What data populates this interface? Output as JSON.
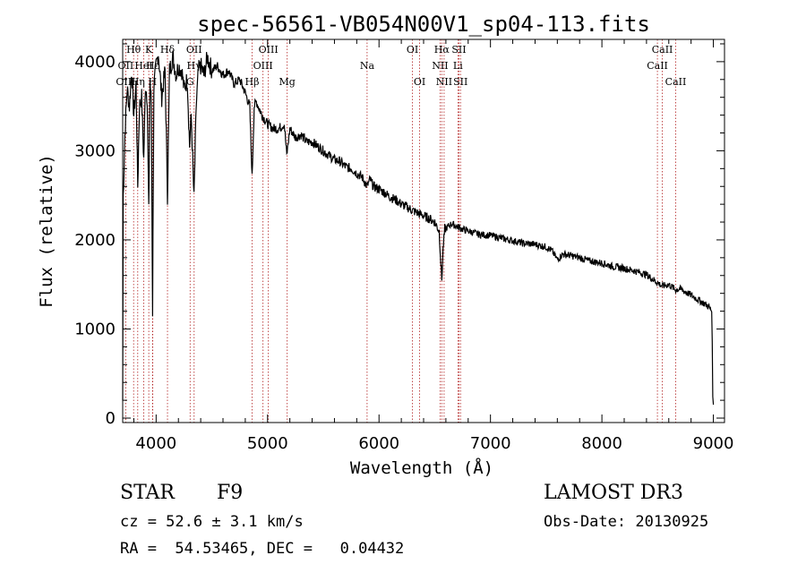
{
  "chart_data": {
    "type": "line",
    "title": "spec-56561-VB054N00V1_sp04-113.fits",
    "xlabel": "Wavelength (Å)",
    "ylabel": "Flux (relative)",
    "xlim": [
      3700,
      9100
    ],
    "ylim": [
      -50,
      4250
    ],
    "xticks": [
      4000,
      5000,
      6000,
      7000,
      8000,
      9000
    ],
    "yticks": [
      0,
      1000,
      2000,
      3000,
      4000
    ],
    "grid": false,
    "line_color": "#000000",
    "marker_color": "#b22222",
    "series": [
      {
        "name": "flux",
        "anchors": [
          [
            3700,
            200
          ],
          [
            3705,
            2500
          ],
          [
            3720,
            3200
          ],
          [
            3740,
            3700
          ],
          [
            3760,
            3500
          ],
          [
            3780,
            3900
          ],
          [
            3800,
            3400
          ],
          [
            3820,
            3750
          ],
          [
            3835,
            2600
          ],
          [
            3850,
            3500
          ],
          [
            3870,
            3600
          ],
          [
            3889,
            2900
          ],
          [
            3905,
            3750
          ],
          [
            3920,
            3600
          ],
          [
            3934,
            2300
          ],
          [
            3945,
            3800
          ],
          [
            3958,
            3500
          ],
          [
            3968,
            1200
          ],
          [
            3980,
            3700
          ],
          [
            4000,
            3950
          ],
          [
            4020,
            4100
          ],
          [
            4050,
            3600
          ],
          [
            4080,
            3900
          ],
          [
            4102,
            2500
          ],
          [
            4120,
            3900
          ],
          [
            4150,
            4050
          ],
          [
            4180,
            3850
          ],
          [
            4200,
            3950
          ],
          [
            4230,
            3900
          ],
          [
            4250,
            3700
          ],
          [
            4280,
            3800
          ],
          [
            4300,
            3050
          ],
          [
            4315,
            3400
          ],
          [
            4340,
            2450
          ],
          [
            4360,
            3500
          ],
          [
            4380,
            3900
          ],
          [
            4400,
            3950
          ],
          [
            4430,
            3850
          ],
          [
            4460,
            4050
          ],
          [
            4500,
            3900
          ],
          [
            4550,
            3950
          ],
          [
            4600,
            3850
          ],
          [
            4650,
            3900
          ],
          [
            4700,
            3750
          ],
          [
            4750,
            3800
          ],
          [
            4800,
            3650
          ],
          [
            4840,
            3500
          ],
          [
            4861,
            2700
          ],
          [
            4880,
            3500
          ],
          [
            4900,
            3550
          ],
          [
            4950,
            3400
          ],
          [
            5000,
            3300
          ],
          [
            5050,
            3250
          ],
          [
            5100,
            3250
          ],
          [
            5150,
            3300
          ],
          [
            5172,
            2950
          ],
          [
            5200,
            3250
          ],
          [
            5250,
            3150
          ],
          [
            5300,
            3180
          ],
          [
            5350,
            3100
          ],
          [
            5400,
            3100
          ],
          [
            5450,
            3050
          ],
          [
            5500,
            3000
          ],
          [
            5550,
            2950
          ],
          [
            5600,
            2900
          ],
          [
            5650,
            2880
          ],
          [
            5700,
            2820
          ],
          [
            5750,
            2800
          ],
          [
            5800,
            2750
          ],
          [
            5850,
            2700
          ],
          [
            5893,
            2600
          ],
          [
            5920,
            2680
          ],
          [
            5950,
            2600
          ],
          [
            6000,
            2570
          ],
          [
            6050,
            2530
          ],
          [
            6100,
            2480
          ],
          [
            6150,
            2450
          ],
          [
            6200,
            2400
          ],
          [
            6250,
            2370
          ],
          [
            6300,
            2330
          ],
          [
            6350,
            2300
          ],
          [
            6400,
            2270
          ],
          [
            6450,
            2240
          ],
          [
            6500,
            2200
          ],
          [
            6540,
            2100
          ],
          [
            6550,
            1850
          ],
          [
            6563,
            1550
          ],
          [
            6575,
            1900
          ],
          [
            6590,
            2120
          ],
          [
            6620,
            2150
          ],
          [
            6650,
            2180
          ],
          [
            6700,
            2150
          ],
          [
            6750,
            2120
          ],
          [
            6800,
            2100
          ],
          [
            6900,
            2060
          ],
          [
            7000,
            2050
          ],
          [
            7100,
            2020
          ],
          [
            7200,
            1990
          ],
          [
            7300,
            1960
          ],
          [
            7400,
            1950
          ],
          [
            7500,
            1920
          ],
          [
            7550,
            1880
          ],
          [
            7600,
            1780
          ],
          [
            7650,
            1840
          ],
          [
            7700,
            1830
          ],
          [
            7800,
            1800
          ],
          [
            7900,
            1760
          ],
          [
            8000,
            1740
          ],
          [
            8100,
            1700
          ],
          [
            8200,
            1680
          ],
          [
            8300,
            1650
          ],
          [
            8400,
            1610
          ],
          [
            8498,
            1520
          ],
          [
            8542,
            1480
          ],
          [
            8600,
            1500
          ],
          [
            8662,
            1440
          ],
          [
            8700,
            1450
          ],
          [
            8800,
            1380
          ],
          [
            8900,
            1300
          ],
          [
            8960,
            1250
          ],
          [
            8985,
            1200
          ],
          [
            8990,
            900
          ],
          [
            8995,
            200
          ],
          [
            9000,
            150
          ]
        ]
      }
    ],
    "annotations": [
      {
        "label": "Hθ",
        "wavelength": 3798,
        "row": 0
      },
      {
        "label": "OII",
        "wavelength": 3727,
        "row": 1
      },
      {
        "label": "OIII",
        "wavelength": 3727,
        "row": 2
      },
      {
        "label": "Hη",
        "wavelength": 3835,
        "row": 2
      },
      {
        "label": "HeI",
        "wavelength": 3889,
        "row": 1
      },
      {
        "label": "K",
        "wavelength": 3934,
        "row": 0
      },
      {
        "label": "Hε",
        "wavelength": 3970,
        "row": 1
      },
      {
        "label": "H",
        "wavelength": 3968,
        "row": 2
      },
      {
        "label": "Hδ",
        "wavelength": 4102,
        "row": 0
      },
      {
        "label": "OII",
        "wavelength": 4341,
        "row": 0
      },
      {
        "label": "Hγ",
        "wavelength": 4340,
        "row": 1
      },
      {
        "label": "G",
        "wavelength": 4305,
        "row": 2
      },
      {
        "label": "Hβ",
        "wavelength": 4861,
        "row": 2
      },
      {
        "label": "OIII",
        "wavelength": 5007,
        "row": 0
      },
      {
        "label": "OIII",
        "wavelength": 4959,
        "row": 1
      },
      {
        "label": "Mg",
        "wavelength": 5176,
        "row": 2
      },
      {
        "label": "Na",
        "wavelength": 5893,
        "row": 1
      },
      {
        "label": "OI",
        "wavelength": 6300,
        "row": 0
      },
      {
        "label": "OI",
        "wavelength": 6364,
        "row": 2
      },
      {
        "label": "Hα",
        "wavelength": 6563,
        "row": 0
      },
      {
        "label": "NII",
        "wavelength": 6548,
        "row": 1
      },
      {
        "label": "NII",
        "wavelength": 6584,
        "row": 2
      },
      {
        "label": "SII",
        "wavelength": 6717,
        "row": 0
      },
      {
        "label": "Li",
        "wavelength": 6708,
        "row": 1
      },
      {
        "label": "SII",
        "wavelength": 6731,
        "row": 2
      },
      {
        "label": "CaII",
        "wavelength": 8542,
        "row": 0
      },
      {
        "label": "CaII",
        "wavelength": 8498,
        "row": 1
      },
      {
        "label": "CaII",
        "wavelength": 8662,
        "row": 2
      }
    ]
  },
  "info": {
    "object_class": "STAR",
    "subclass": "F9",
    "survey": "LAMOST DR3",
    "redshift": "cz = 52.6 ± 3.1 km/s",
    "obs_date": "Obs-Date: 20130925",
    "coords": "RA =  54.53465, DEC =   0.04432"
  }
}
